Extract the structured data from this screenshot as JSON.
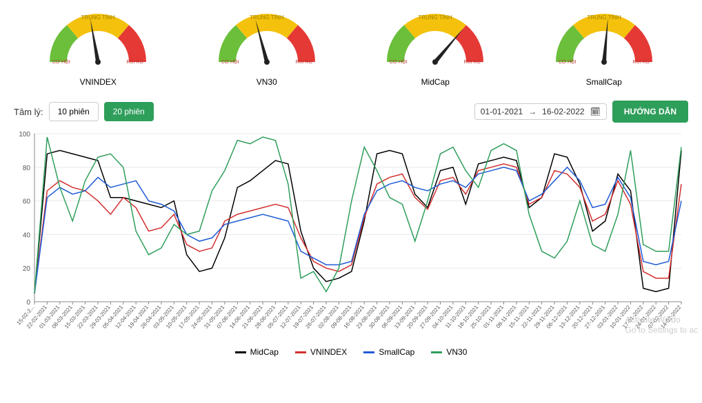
{
  "gauges": {
    "arc": {
      "co_hoi_color": "#6bbf3a",
      "trung_tinh_color": "#f4c20d",
      "rui_ro_color": "#e53935",
      "inner_color": "#ffffff"
    },
    "labels": {
      "top": "TRUNG TÍNH",
      "left": "CƠ HỘI",
      "right": "RỦI RO"
    },
    "items": [
      {
        "name": "VNINDEX",
        "needle_deg": 80
      },
      {
        "name": "VN30",
        "needle_deg": 75
      },
      {
        "name": "MidCap",
        "needle_deg": 130
      },
      {
        "name": "SmallCap",
        "needle_deg": 95
      }
    ]
  },
  "controls": {
    "left_label": "Tâm lý:",
    "btn10": "10 phiên",
    "btn20": "20 phiên",
    "date_start": "01-01-2021",
    "date_end": "16-02-2022",
    "guide_btn": "HƯỚNG DẪN"
  },
  "chart": {
    "ylim": [
      0,
      100
    ],
    "ytick_step": 20,
    "grid_color": "#e8e8e8",
    "axis_color": "#888888",
    "x_labels": [
      "15-02-2...",
      "22-02-2021",
      "01-03-2021",
      "08-03-2021",
      "15-03-2021",
      "22-03-2021",
      "29-03-2021",
      "05-04-2021",
      "12-04-2021",
      "19-04-2021",
      "26-04-2021",
      "03-05-2021",
      "10-05-2021",
      "17-05-2021",
      "24-05-2021",
      "31-05-2021",
      "07-06-2021",
      "14-06-2021",
      "21-06-2021",
      "28-06-2021",
      "05-07-2021",
      "12-07-2021",
      "19-07-2021",
      "26-07-2021",
      "02-08-2021",
      "09-08-2021",
      "16-08-2021",
      "23-08-2021",
      "30-08-2021",
      "06-09-2021",
      "13-09-2021",
      "20-09-2021",
      "27-09-2021",
      "04-10-2021",
      "11-10-2021",
      "18-10-2021",
      "25-10-2021",
      "01-11-2021",
      "08-11-2021",
      "15-11-2021",
      "22-11-2021",
      "29-11-2021",
      "06-12-2021",
      "13-12-2021",
      "20-12-2021",
      "27-12-2021",
      "03-01-2022",
      "10-01-2022",
      "17-01-2022",
      "24-01-2022",
      "07-02-2022",
      "14-02-2022"
    ],
    "series": [
      {
        "name": "MidCap",
        "color": "#000000",
        "data": [
          5,
          88,
          90,
          88,
          86,
          84,
          62,
          62,
          60,
          58,
          56,
          60,
          28,
          18,
          20,
          38,
          68,
          72,
          78,
          84,
          82,
          42,
          20,
          12,
          14,
          18,
          48,
          88,
          90,
          88,
          64,
          56,
          78,
          80,
          58,
          82,
          84,
          86,
          84,
          56,
          62,
          88,
          86,
          70,
          42,
          48,
          76,
          66,
          8,
          6,
          8,
          90
        ]
      },
      {
        "name": "VNINDEX",
        "color": "#d32f2f",
        "data": [
          5,
          66,
          72,
          68,
          66,
          60,
          52,
          62,
          56,
          42,
          44,
          52,
          34,
          30,
          32,
          48,
          52,
          54,
          56,
          58,
          56,
          38,
          24,
          20,
          18,
          22,
          50,
          70,
          74,
          76,
          62,
          55,
          72,
          74,
          64,
          78,
          80,
          82,
          80,
          58,
          62,
          78,
          76,
          68,
          48,
          52,
          72,
          58,
          18,
          14,
          14,
          70
        ]
      },
      {
        "name": "SmallCap",
        "color": "#1e5bd6",
        "data": [
          5,
          62,
          68,
          64,
          66,
          74,
          68,
          70,
          72,
          60,
          58,
          54,
          40,
          36,
          38,
          46,
          48,
          50,
          52,
          50,
          48,
          30,
          26,
          22,
          22,
          24,
          52,
          66,
          70,
          72,
          68,
          66,
          70,
          72,
          68,
          76,
          78,
          80,
          78,
          60,
          64,
          72,
          80,
          72,
          56,
          58,
          74,
          62,
          24,
          22,
          24,
          60
        ]
      },
      {
        "name": "VN30",
        "color": "#2e9e5b",
        "data": [
          5,
          98,
          68,
          48,
          72,
          86,
          88,
          80,
          42,
          28,
          32,
          46,
          40,
          42,
          66,
          78,
          96,
          94,
          98,
          96,
          70,
          14,
          18,
          6,
          20,
          60,
          92,
          78,
          62,
          58,
          36,
          60,
          88,
          92,
          78,
          68,
          90,
          94,
          90,
          52,
          30,
          26,
          36,
          60,
          34,
          30,
          52,
          90,
          34,
          30,
          30,
          92
        ]
      }
    ]
  },
  "legend": {
    "items": [
      {
        "name": "MidCap",
        "color": "#000000"
      },
      {
        "name": "VNINDEX",
        "color": "#d32f2f"
      },
      {
        "name": "SmallCap",
        "color": "#1e5bd6"
      },
      {
        "name": "VN30",
        "color": "#2e9e5b"
      }
    ]
  },
  "watermark": {
    "l1": "Activate Windo",
    "l2": "Go to Settings to ac"
  }
}
